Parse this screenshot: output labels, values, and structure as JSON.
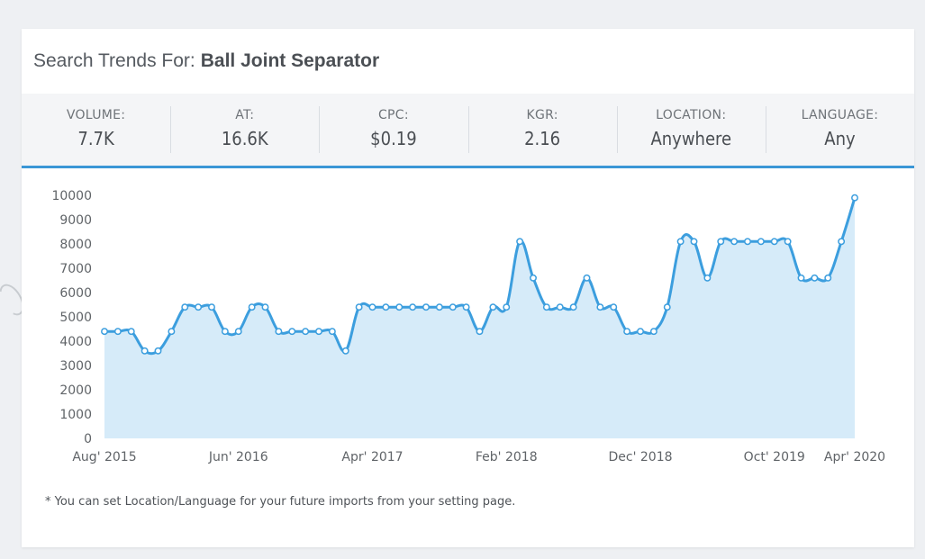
{
  "header": {
    "prefix": "Search Trends For:",
    "keyword": "Ball Joint Separator"
  },
  "stats": [
    {
      "label": "VOLUME:",
      "value": "7.7K"
    },
    {
      "label": "AT:",
      "value": "16.6K"
    },
    {
      "label": "CPC:",
      "value": "$0.19"
    },
    {
      "label": "KGR:",
      "value": "2.16"
    },
    {
      "label": "LOCATION:",
      "value": "Anywhere"
    },
    {
      "label": "LANGUAGE:",
      "value": "Any"
    }
  ],
  "footnote": "* You can set Location/Language for your future imports from your setting page.",
  "colors": {
    "accent": "#3a96d6",
    "line": "#3c9ede",
    "area": "#d6ebf9"
  },
  "chart_data": {
    "type": "area",
    "title": "",
    "xlabel": "",
    "ylabel": "",
    "ylim": [
      0,
      10000
    ],
    "yticks": [
      "10000",
      "9000",
      "8000",
      "7000",
      "6000",
      "5000",
      "4000",
      "3000",
      "2000",
      "1000",
      "0"
    ],
    "xtick_labels": [
      {
        "label": "Aug' 2015",
        "x": "2015-08"
      },
      {
        "label": "Jun' 2016",
        "x": "2016-06"
      },
      {
        "label": "Apr' 2017",
        "x": "2017-04"
      },
      {
        "label": "Feb' 2018",
        "x": "2018-02"
      },
      {
        "label": "Dec' 2018",
        "x": "2018-12"
      },
      {
        "label": "Oct' 2019",
        "x": "2019-10"
      },
      {
        "label": "Apr' 2020",
        "x": "2020-04"
      }
    ],
    "grid": false,
    "series": [
      {
        "x": [
          "2015-08",
          "2015-09",
          "2015-10",
          "2015-11",
          "2015-12",
          "2016-01",
          "2016-02",
          "2016-03",
          "2016-04",
          "2016-05",
          "2016-06",
          "2016-07",
          "2016-08",
          "2016-09",
          "2016-10",
          "2016-11",
          "2016-12",
          "2017-01",
          "2017-02",
          "2017-03",
          "2017-04",
          "2017-05",
          "2017-06",
          "2017-07",
          "2017-08",
          "2017-09",
          "2017-10",
          "2017-11",
          "2017-12",
          "2018-01",
          "2018-02",
          "2018-03",
          "2018-04",
          "2018-05",
          "2018-06",
          "2018-07",
          "2018-08",
          "2018-09",
          "2018-10",
          "2018-11",
          "2018-12",
          "2019-01",
          "2019-02",
          "2019-03",
          "2019-04",
          "2019-05",
          "2019-06",
          "2019-07",
          "2019-08",
          "2019-09",
          "2019-10",
          "2019-11",
          "2019-12",
          "2020-01",
          "2020-02",
          "2020-03",
          "2020-04"
        ],
        "values": [
          4400,
          4400,
          4400,
          3600,
          3600,
          4400,
          5400,
          5400,
          5400,
          4400,
          4400,
          5400,
          5400,
          4400,
          4400,
          4400,
          4400,
          4400,
          3600,
          5400,
          5400,
          5400,
          5400,
          5400,
          5400,
          5400,
          5400,
          5400,
          4400,
          5400,
          5400,
          8100,
          6600,
          5400,
          5400,
          5400,
          6600,
          5400,
          5400,
          4400,
          4400,
          4400,
          5400,
          8100,
          8100,
          6600,
          8100,
          8100,
          8100,
          8100,
          8100,
          8100,
          6600,
          6600,
          6600,
          8100,
          9900
        ]
      }
    ]
  }
}
